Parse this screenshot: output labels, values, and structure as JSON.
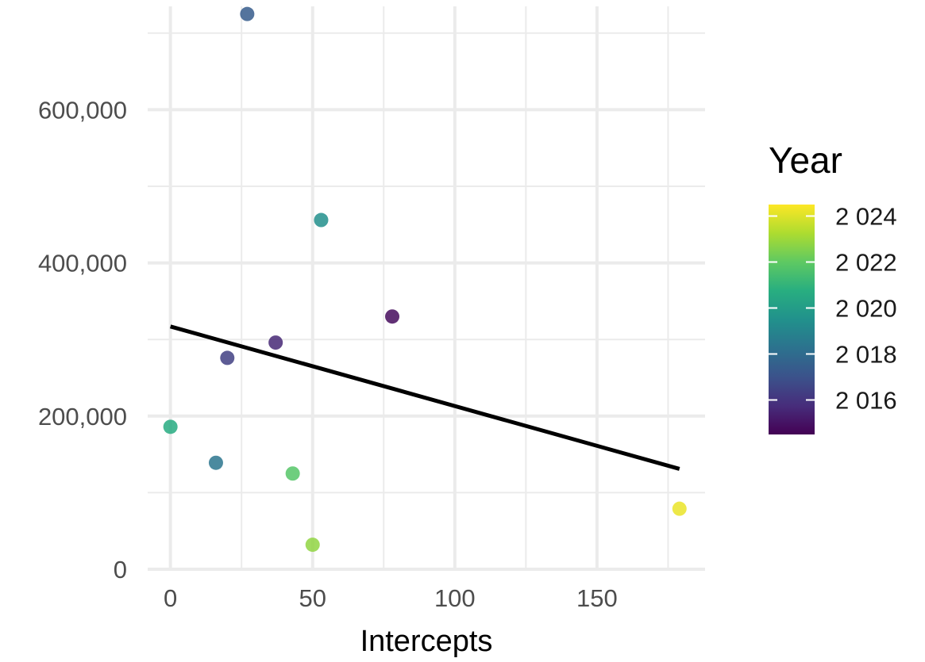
{
  "chart_data": {
    "type": "scatter",
    "title": "",
    "xlabel": "Intercepts",
    "ylabel": "",
    "xlim": [
      -8,
      188
    ],
    "ylim": [
      0,
      735000
    ],
    "x_ticks": [
      0,
      50,
      100,
      150
    ],
    "x_tick_labels": [
      "0",
      "50",
      "100",
      "150"
    ],
    "y_ticks": [
      0,
      200000,
      400000,
      600000
    ],
    "y_tick_labels": [
      "0",
      "200,000",
      "400,000",
      "600,000"
    ],
    "grid": true,
    "points": [
      {
        "x": 27,
        "y": 725000,
        "year": 2017.4
      },
      {
        "x": 53,
        "y": 456000,
        "year": 2019.4
      },
      {
        "x": 78,
        "y": 330000,
        "year": 2014.8
      },
      {
        "x": 37,
        "y": 296000,
        "year": 2015.6
      },
      {
        "x": 20,
        "y": 276000,
        "year": 2016.4
      },
      {
        "x": 0,
        "y": 186000,
        "year": 2020.6
      },
      {
        "x": 16,
        "y": 139000,
        "year": 2018.4
      },
      {
        "x": 43,
        "y": 125000,
        "year": 2021.8
      },
      {
        "x": 50,
        "y": 32000,
        "year": 2022.8
      },
      {
        "x": 179,
        "y": 79000,
        "year": 2024.2
      }
    ],
    "trend_line": {
      "x": [
        0,
        179
      ],
      "y": [
        317000,
        131000
      ],
      "color": "#000000"
    },
    "legend": {
      "title": "Year",
      "position": "right",
      "range": [
        2014.5,
        2024.5
      ],
      "labels": [
        "2 024",
        "2 022",
        "2 020",
        "2 018",
        "2 016"
      ],
      "label_values": [
        2024,
        2022,
        2020,
        2018,
        2016
      ],
      "colormap": "viridis",
      "colors": [
        "#440154",
        "#472d7b",
        "#3b528b",
        "#2c728e",
        "#21918c",
        "#28ae80",
        "#5ec962",
        "#addc30",
        "#fde725"
      ]
    }
  }
}
